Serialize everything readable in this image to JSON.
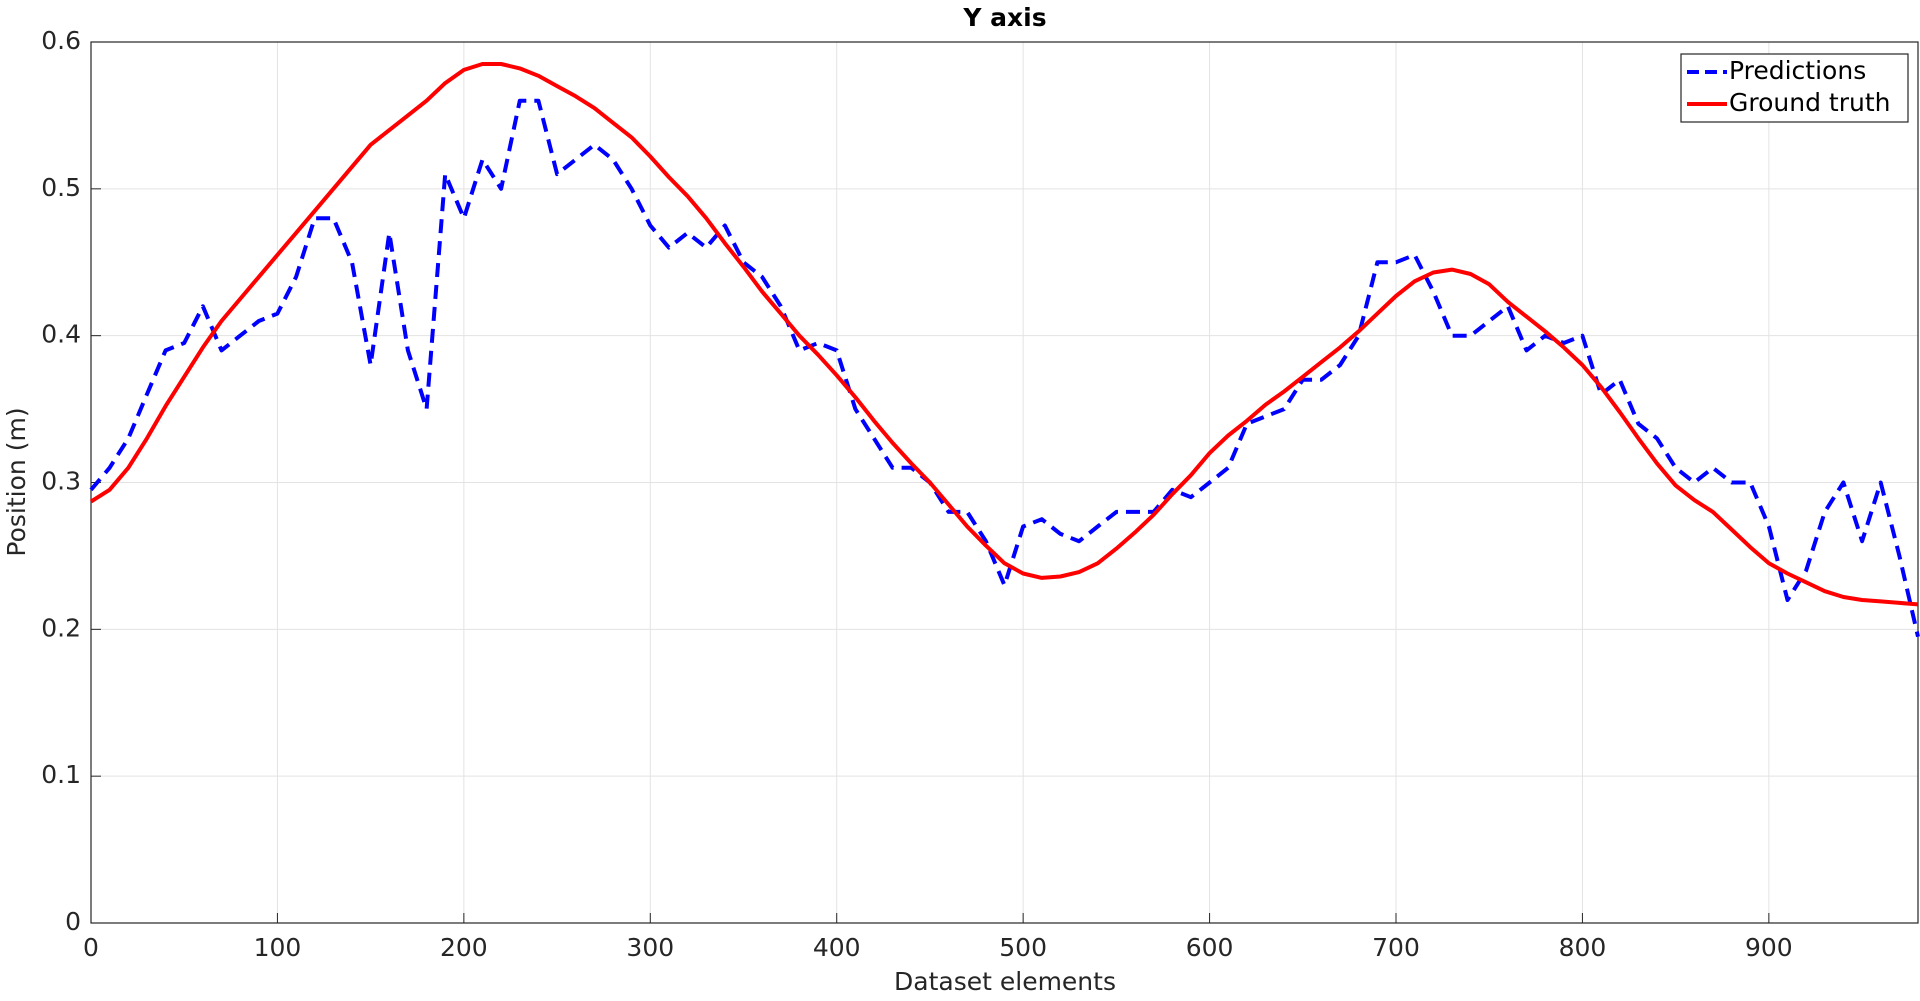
{
  "chart_data": {
    "type": "line",
    "title": "Y axis",
    "xlabel": "Dataset elements",
    "ylabel": "Position (m)",
    "x": [
      0,
      10,
      20,
      30,
      40,
      50,
      60,
      70,
      80,
      90,
      100,
      110,
      120,
      130,
      140,
      150,
      160,
      170,
      180,
      190,
      200,
      210,
      220,
      230,
      240,
      250,
      260,
      270,
      280,
      290,
      300,
      310,
      320,
      330,
      340,
      350,
      360,
      370,
      380,
      390,
      400,
      410,
      420,
      430,
      440,
      450,
      460,
      470,
      480,
      490,
      500,
      510,
      520,
      530,
      540,
      550,
      560,
      570,
      580,
      590,
      600,
      610,
      620,
      630,
      640,
      650,
      660,
      670,
      680,
      690,
      700,
      710,
      720,
      730,
      740,
      750,
      760,
      770,
      780,
      790,
      800,
      810,
      820,
      830,
      840,
      850,
      860,
      870,
      880,
      890,
      900,
      910,
      920,
      930,
      940,
      950,
      960,
      970,
      980
    ],
    "series": [
      {
        "name": "Predictions",
        "color": "#0000ff",
        "dash": true,
        "values": [
          0.295,
          0.31,
          0.33,
          0.36,
          0.39,
          0.395,
          0.42,
          0.39,
          0.4,
          0.41,
          0.415,
          0.44,
          0.48,
          0.48,
          0.45,
          0.38,
          0.47,
          0.39,
          0.35,
          0.51,
          0.48,
          0.52,
          0.5,
          0.56,
          0.56,
          0.51,
          0.52,
          0.53,
          0.52,
          0.5,
          0.475,
          0.46,
          0.47,
          0.46,
          0.475,
          0.45,
          0.44,
          0.42,
          0.39,
          0.395,
          0.39,
          0.35,
          0.33,
          0.31,
          0.31,
          0.3,
          0.28,
          0.28,
          0.26,
          0.23,
          0.27,
          0.275,
          0.265,
          0.26,
          0.27,
          0.28,
          0.28,
          0.28,
          0.295,
          0.29,
          0.3,
          0.31,
          0.34,
          0.345,
          0.35,
          0.37,
          0.37,
          0.38,
          0.4,
          0.45,
          0.45,
          0.455,
          0.43,
          0.4,
          0.4,
          0.41,
          0.42,
          0.39,
          0.4,
          0.395,
          0.4,
          0.36,
          0.37,
          0.34,
          0.33,
          0.31,
          0.3,
          0.31,
          0.3,
          0.3,
          0.27,
          0.22,
          0.24,
          0.28,
          0.3,
          0.26,
          0.3,
          0.25,
          0.195
        ]
      },
      {
        "name": "Ground truth",
        "color": "#ff0000",
        "dash": false,
        "values": [
          0.287,
          0.295,
          0.31,
          0.33,
          0.352,
          0.372,
          0.392,
          0.41,
          0.425,
          0.44,
          0.455,
          0.47,
          0.485,
          0.5,
          0.515,
          0.53,
          0.54,
          0.55,
          0.56,
          0.572,
          0.581,
          0.585,
          0.585,
          0.582,
          0.577,
          0.57,
          0.563,
          0.555,
          0.545,
          0.535,
          0.522,
          0.508,
          0.495,
          0.48,
          0.463,
          0.447,
          0.43,
          0.415,
          0.4,
          0.387,
          0.373,
          0.358,
          0.342,
          0.327,
          0.313,
          0.3,
          0.285,
          0.27,
          0.257,
          0.245,
          0.238,
          0.235,
          0.236,
          0.239,
          0.245,
          0.255,
          0.266,
          0.278,
          0.292,
          0.305,
          0.32,
          0.332,
          0.342,
          0.353,
          0.362,
          0.372,
          0.382,
          0.392,
          0.403,
          0.415,
          0.427,
          0.437,
          0.443,
          0.445,
          0.442,
          0.435,
          0.423,
          0.413,
          0.403,
          0.392,
          0.38,
          0.365,
          0.348,
          0.33,
          0.313,
          0.298,
          0.288,
          0.28,
          0.268,
          0.256,
          0.245,
          0.238,
          0.232,
          0.226,
          0.222,
          0.22,
          0.219,
          0.218,
          0.217
        ]
      }
    ],
    "xlim": [
      0,
      980
    ],
    "xticks": [
      0,
      100,
      200,
      300,
      400,
      500,
      600,
      700,
      800,
      900
    ],
    "ylim": [
      0,
      0.6
    ],
    "yticks": [
      0,
      0.1,
      0.2,
      0.3,
      0.4,
      0.5,
      0.6
    ],
    "grid": true,
    "legend": "top-right"
  }
}
